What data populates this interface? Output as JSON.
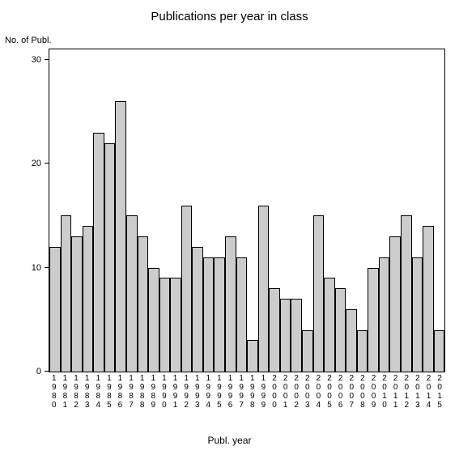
{
  "chart": {
    "type": "bar",
    "title": "Publications per year in class",
    "title_fontsize": 15,
    "yaxis_label": "No. of Publ.",
    "xaxis_label": "Publ. year",
    "label_fontsize": 12,
    "tick_fontsize": 11,
    "xtick_fontsize": 10,
    "background_color": "#ffffff",
    "plot_border_color": "#000000",
    "bar_fill_color": "#cccccc",
    "bar_border_color": "#000000",
    "bar_width": 1.0,
    "ylim": [
      0,
      31
    ],
    "yticks": [
      0,
      10,
      20,
      30
    ],
    "categories": [
      "1980",
      "1981",
      "1982",
      "1983",
      "1984",
      "1985",
      "1986",
      "1987",
      "1988",
      "1989",
      "1990",
      "1991",
      "1992",
      "1993",
      "1994",
      "1995",
      "1996",
      "1997",
      "1998",
      "1999",
      "2000",
      "2001",
      "2002",
      "2003",
      "2004",
      "2005",
      "2006",
      "2007",
      "2008",
      "2009",
      "2010",
      "2011",
      "2012",
      "2013",
      "2014",
      "2015"
    ],
    "values": [
      12,
      15,
      13,
      14,
      23,
      22,
      26,
      15,
      13,
      10,
      9,
      9,
      16,
      12,
      11,
      11,
      13,
      11,
      3,
      16,
      8,
      7,
      7,
      4,
      15,
      9,
      8,
      6,
      4,
      10,
      11,
      13,
      15,
      11,
      14,
      4
    ]
  }
}
